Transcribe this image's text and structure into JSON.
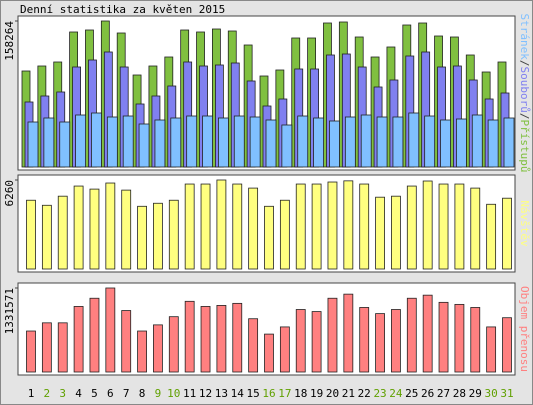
{
  "chart_data": [
    {
      "type": "bar",
      "title": "Denní statistika za květen 2015",
      "legend_separator": "/",
      "ylim": [
        0,
        158264
      ],
      "yticks": [
        158264
      ],
      "series": [
        {
          "name": "Stránek",
          "color": "#80c0ff",
          "values": [
            48780,
            53116,
            48780,
            56368,
            58536,
            54200,
            55284,
            46612,
            50948,
            53116,
            55284,
            55284,
            53116,
            55284,
            54200,
            50948,
            45528,
            55284,
            53116,
            49864,
            54200,
            56368,
            54200,
            54200,
            58536,
            55284,
            50948,
            52032,
            56368,
            50948,
            53116
          ]
        },
        {
          "name": "Souborů",
          "color": "#8080f0",
          "values": [
            70460,
            76964,
            81300,
            108400,
            115988,
            124660,
            108400,
            68292,
            76964,
            87804,
            113820,
            109484,
            110568,
            112736,
            93224,
            66124,
            73712,
            106232,
            106232,
            121408,
            122492,
            108400,
            86720,
            94308,
            120324,
            124660,
            108400,
            109484,
            94308,
            73712,
            80216
          ]
        },
        {
          "name": "Přístupů",
          "color": "#80c040",
          "values": [
            104064,
            109484,
            113820,
            146340,
            148508,
            158264,
            145256,
            99728,
            109484,
            119240,
            148508,
            146340,
            149592,
            147424,
            132248,
            98644,
            105148,
            139836,
            139836,
            156096,
            157180,
            140920,
            119240,
            130080,
            153928,
            156096,
            142004,
            140920,
            121408,
            102980,
            113820
          ]
        }
      ]
    },
    {
      "type": "bar",
      "ylim": [
        0,
        6260
      ],
      "yticks": [
        6260
      ],
      "series": [
        {
          "name": "Návštěv",
          "color": "#ffff80",
          "values": [
            4837,
            4482,
            5122,
            5834,
            5620,
            6047,
            5549,
            4411,
            4624,
            4837,
            5976,
            5976,
            6260,
            5976,
            5691,
            4411,
            4837,
            5976,
            5976,
            6118,
            6200,
            5976,
            5051,
            5122,
            5834,
            6189,
            5976,
            5976,
            5691,
            4553,
            4980
          ]
        }
      ]
    },
    {
      "type": "bar",
      "ylim": [
        0,
        1331571
      ],
      "yticks": [
        1331571
      ],
      "categories": [
        "1",
        "2",
        "3",
        "4",
        "5",
        "6",
        "7",
        "8",
        "9",
        "10",
        "11",
        "12",
        "13",
        "14",
        "15",
        "16",
        "17",
        "18",
        "19",
        "20",
        "21",
        "22",
        "23",
        "24",
        "25",
        "26",
        "27",
        "28",
        "29",
        "30",
        "31"
      ],
      "category_colors": [
        "#000000",
        "#60a000",
        "#60a000",
        "#000000",
        "#000000",
        "#000000",
        "#000000",
        "#000000",
        "#60a000",
        "#60a000",
        "#000000",
        "#000000",
        "#000000",
        "#000000",
        "#000000",
        "#60a000",
        "#60a000",
        "#000000",
        "#000000",
        "#000000",
        "#000000",
        "#000000",
        "#60a000",
        "#60a000",
        "#000000",
        "#000000",
        "#000000",
        "#000000",
        "#000000",
        "#60a000",
        "#60a000"
      ],
      "series": [
        {
          "name": "Objem přenosu",
          "color": "#ff8080",
          "values": [
            649560,
            779472,
            779472,
            1039296,
            1169208,
            1331571,
            974340,
            649560,
            746994,
            876906,
            1120491,
            1039296,
            1055535,
            1088013,
            844428,
            600843,
            714516,
            990579,
            958101,
            1169208,
            1234164,
            1023057,
            925623,
            990579,
            1169208,
            1217925,
            1104252,
            1071774,
            1023057,
            714516,
            860667
          ]
        }
      ]
    }
  ]
}
